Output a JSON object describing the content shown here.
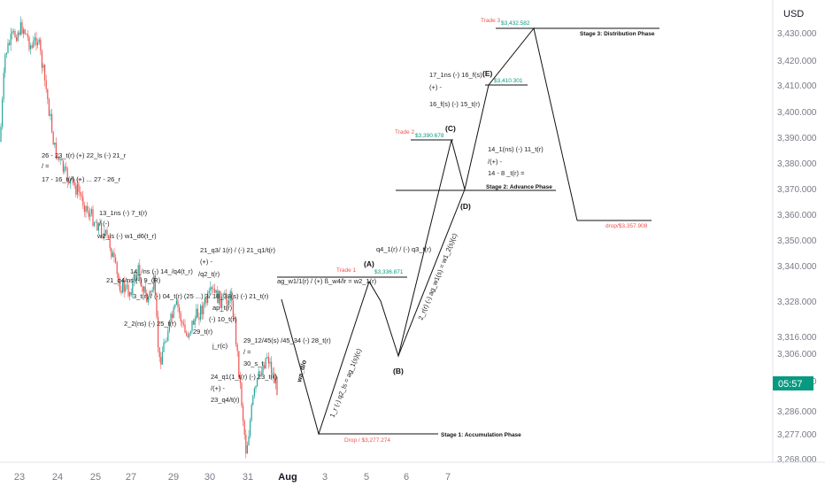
{
  "chart_data": {
    "type": "line",
    "currency": "USD",
    "y_ticks": [
      "3,430.000",
      "3,420.000",
      "3,410.000",
      "3,400.000",
      "3,390.000",
      "3,380.000",
      "3,370.000",
      "3,360.000",
      "3,350.000",
      "3,340.000",
      "3,328.000",
      "3,316.000",
      "3,306.000",
      "3,296.000",
      "3,286.000",
      "3,277.000",
      "3,268.000"
    ],
    "x_ticks": [
      "23",
      "24",
      "25",
      "27",
      "29",
      "30",
      "31",
      "Aug",
      "3",
      "5",
      "6",
      "7"
    ],
    "countdown": "05:57",
    "colors": {
      "up": "#26a69a",
      "down": "#ef5350",
      "tag": "#089981",
      "line": "#111111"
    },
    "path_points": [
      {
        "label": "Drop",
        "price": 3277.274
      },
      {
        "label": "(A)",
        "price": 3336.871
      },
      {
        "label": "(B)",
        "price": 3306.0
      },
      {
        "label": "(C)",
        "price": 3390.678
      },
      {
        "label": "(D)",
        "price": 3370.0
      },
      {
        "label": "(E)",
        "price": 3410.301
      },
      {
        "label": "Trade 3",
        "price": 3432.582
      },
      {
        "label": "drop",
        "price": 3357.908
      }
    ],
    "trades": [
      {
        "name": "Trade 1",
        "price": "$3,336.871"
      },
      {
        "name": "Trade 2",
        "price": "$3,390.678"
      },
      {
        "name": "Trade 3",
        "price": "$3,432.582"
      }
    ],
    "drop_labels": {
      "stage1": "Drop / $3,277.274",
      "final": "drop/$3,357.908"
    },
    "phases": [
      "Stage 1: Accumulation Phase",
      "Stage 2: Advance Phase",
      "Stage 3: Distribution Phase"
    ],
    "wave_labels": [
      "(A)",
      "(B)",
      "(C)",
      "(D)",
      "(E)"
    ],
    "annotations": [
      "26 - 23_t(r) (+) 22_ls (-) 21_r",
      "/ =",
      "17 - 16_t(r) (+) ... 27 - 26_r",
      "13_1ns (-) 7_t(r)",
      "/ (-)",
      "w2_ls (-) w1_d6(t_r)",
      "21_q3/ 1(r) / (-) 21_q1/t(r)",
      "(+) -",
      "/q2_t(r)",
      "14_/ns (-) 14_/q4(t_r)",
      "21_q4/ns (-) 9_(R)",
      "3_t(r) / (-) 04_t(r) (25 ...) 3/ 18_38(s) (-) 21_t(r)",
      "ap_t(r)",
      "(-) 10_t(r)",
      "2_2(ns) (-) 25_t(r)",
      "29_t(r)",
      "j_r(c)",
      "29_12/45(s) /45_34 (-) 28_t(r)",
      "/ =",
      "30_s_t",
      "24_q1(1_t(r) (-) 23_t(r)",
      "/(+) -",
      "23_q4/t(r)",
      "ag_w1/1(r) / (+) ß_w4/lr = w2_1(r)",
      "q4_1(r) / (-) q3_t(r)",
      "14_1(ns) (-) 11_t(r)",
      "/(+) -",
      "14 - 8 _t(r) =",
      "17_1ns (-) 16_f(s)",
      "(+) -",
      "16_f(s) (-) 15_t(r)"
    ],
    "diagonals": [
      "wa_d/o",
      "1_r (-) q2_ls = ag_1(s)(c)",
      "2_r(r) (-) ag_w1(s) = w1_2(s)(c)"
    ]
  }
}
